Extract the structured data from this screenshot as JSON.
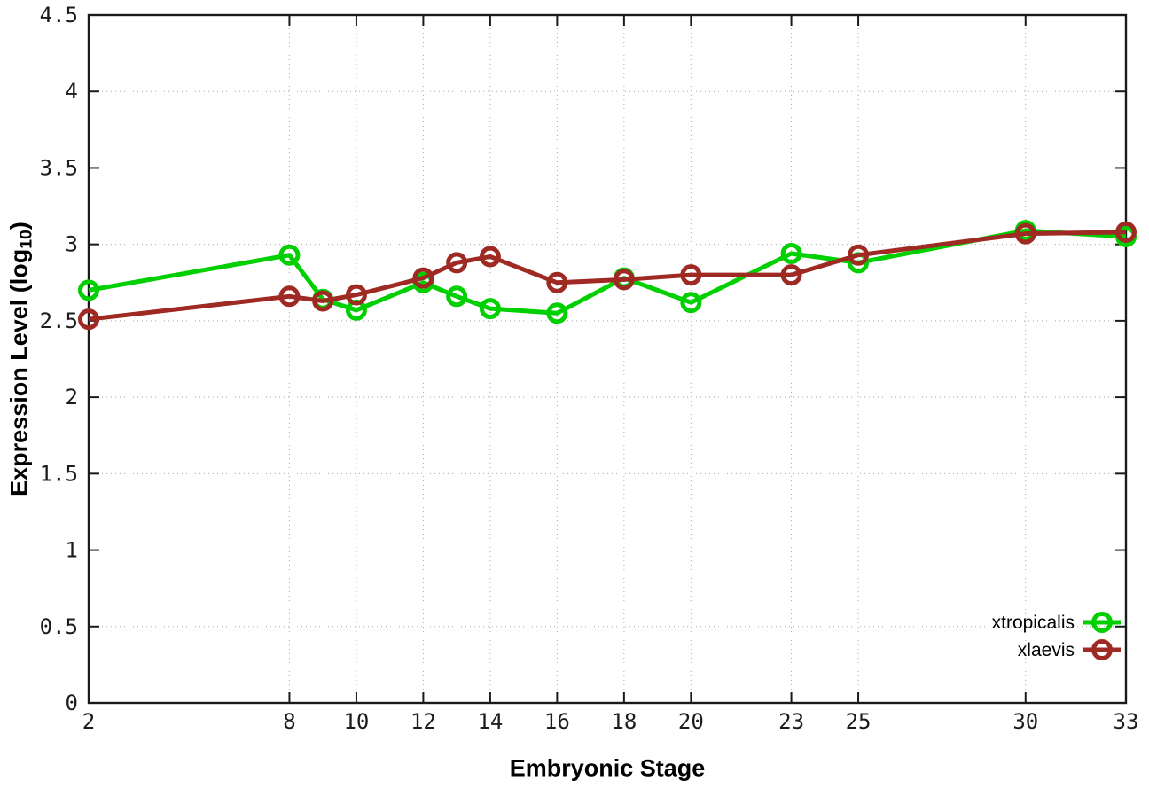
{
  "chart_data": {
    "type": "line",
    "title": "",
    "xlabel": "Embryonic Stage",
    "ylabel": "Expression Level (log10)",
    "ylabel_parts": {
      "prefix": "Expression Level (log",
      "subscript": "10",
      "suffix": ")"
    },
    "x": [
      2,
      8,
      9,
      10,
      12,
      13,
      14,
      16,
      18,
      20,
      23,
      25,
      30,
      33
    ],
    "series": [
      {
        "name": "xtropicalis",
        "color": "#00cf00",
        "values": [
          2.7,
          2.93,
          2.64,
          2.57,
          2.75,
          2.66,
          2.58,
          2.55,
          2.78,
          2.62,
          2.94,
          2.88,
          3.09,
          3.05
        ]
      },
      {
        "name": "xlaevis",
        "color": "#9e2a23",
        "values": [
          2.51,
          2.66,
          2.63,
          2.67,
          2.78,
          2.88,
          2.92,
          2.75,
          2.77,
          2.8,
          2.8,
          2.93,
          3.07,
          3.08
        ]
      }
    ],
    "xticks": [
      2,
      8,
      10,
      12,
      14,
      16,
      18,
      20,
      23,
      25,
      30,
      33
    ],
    "yticks": [
      0,
      0.5,
      1,
      1.5,
      2,
      2.5,
      3,
      3.5,
      4,
      4.5
    ],
    "ytick_labels": [
      "0",
      "0.5",
      "1",
      "1.5",
      "2",
      "2.5",
      "3",
      "3.5",
      "4",
      "4.5"
    ],
    "xlim": [
      2,
      33
    ],
    "ylim": [
      0,
      4.5
    ],
    "grid": true,
    "legend_position": "bottom-right",
    "colors": {
      "background": "#ffffff",
      "border": "#1a1a1a",
      "grid": "#a8a8a8",
      "tick_text": "#1c1c1c"
    }
  }
}
